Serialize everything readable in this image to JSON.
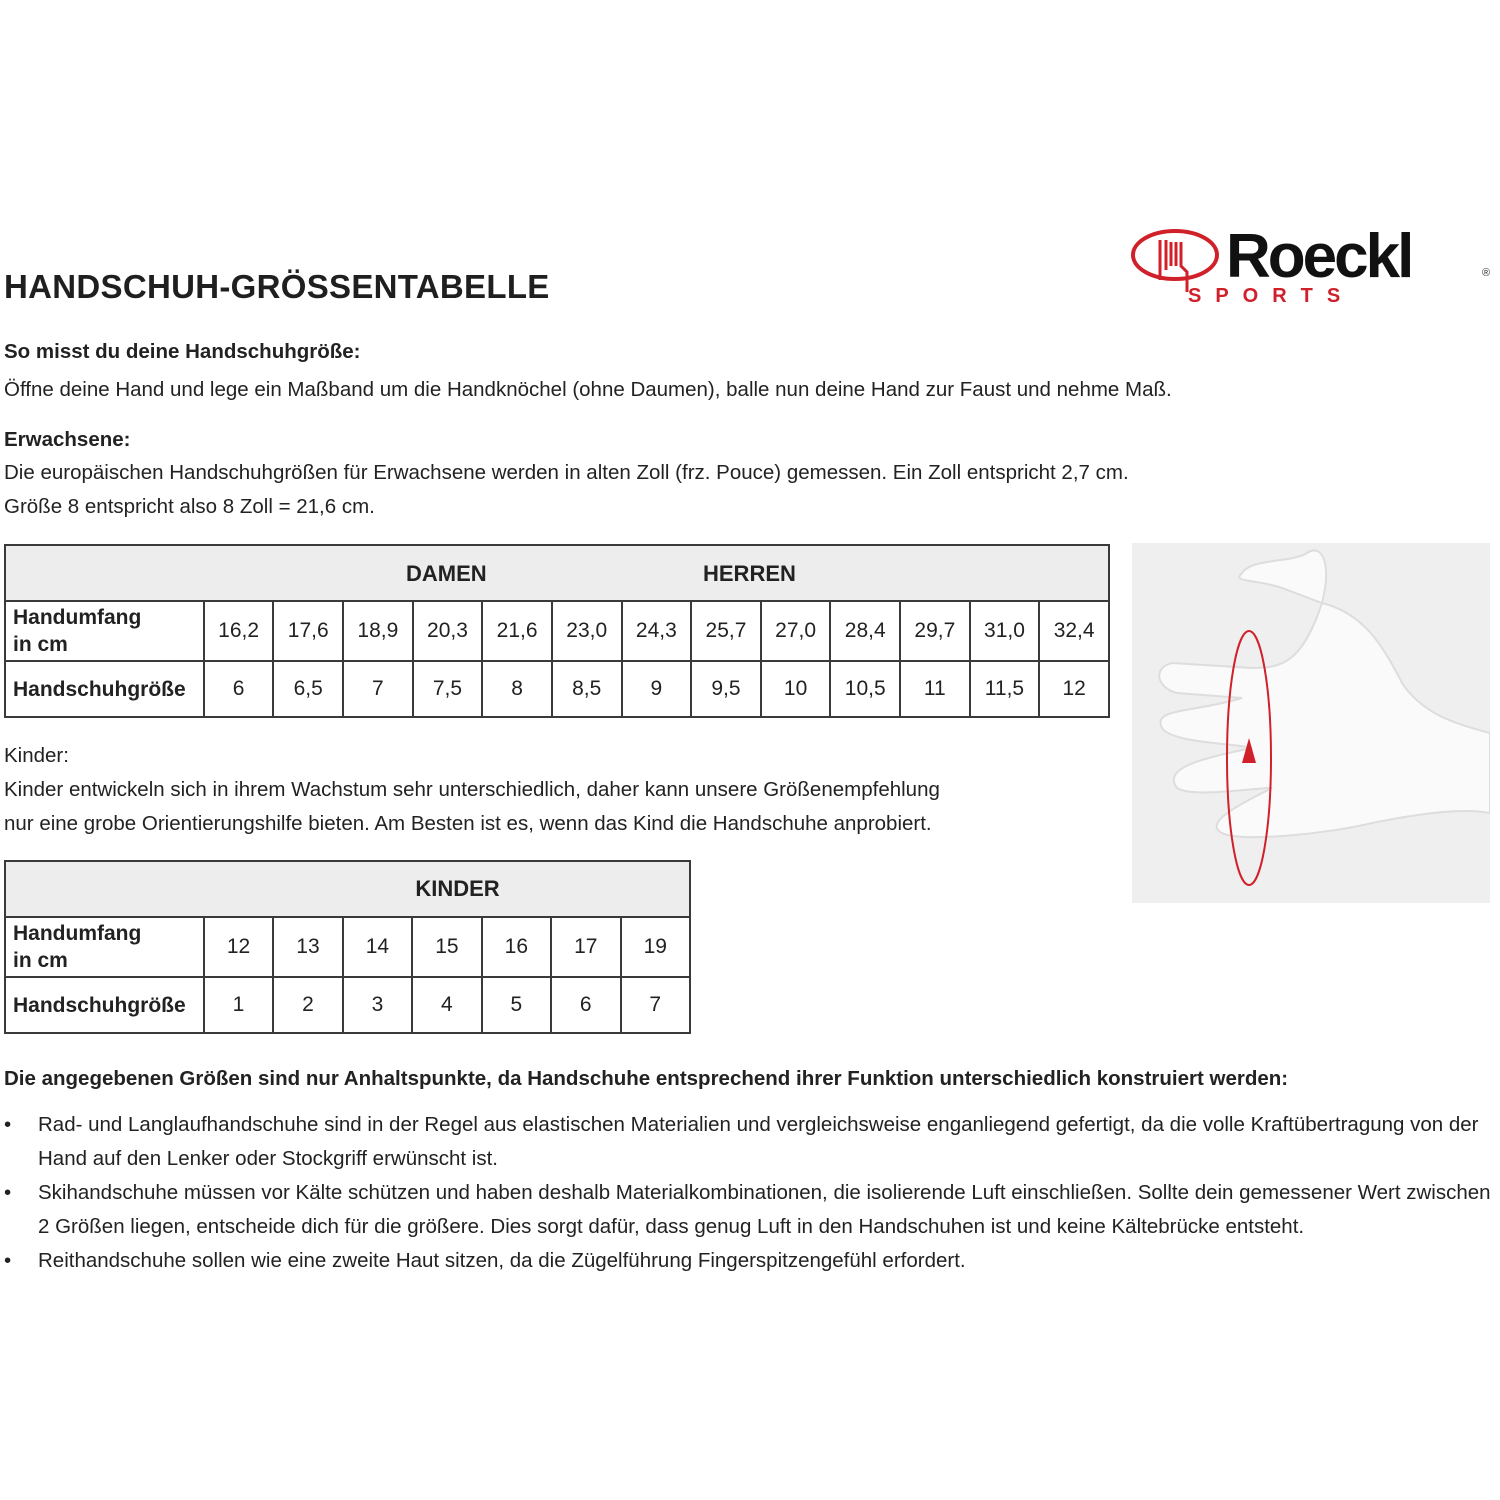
{
  "title": "HANDSCHUH-GRÖSSENTABELLE",
  "logo": {
    "brand": "Roeckl",
    "sub": "SPORTS",
    "registered": "®",
    "color_red": "#d0202a"
  },
  "measure": {
    "heading": "So misst du deine Handschuhgröße:",
    "text": "Öffne deine Hand und lege ein Maßband um die Handknöchel (ohne Daumen), balle nun deine Hand zur Faust und nehme Maß."
  },
  "adults": {
    "heading": "Erwachsene:",
    "line1": "Die europäischen Handschuhgrößen für Erwachsene werden in alten Zoll (frz. Pouce) gemessen. Ein Zoll entspricht 2,7 cm.",
    "line2": "Größe 8 entspricht also 8 Zoll = 21,6 cm."
  },
  "adult_table": {
    "header_damen": "DAMEN",
    "header_herren": "HERREN",
    "row1_label_a": "Handumfang",
    "row1_label_b": "in cm",
    "row2_label": "Handschuhgröße",
    "circumference": [
      "16,2",
      "17,6",
      "18,9",
      "20,3",
      "21,6",
      "23,0",
      "24,3",
      "25,7",
      "27,0",
      "28,4",
      "29,7",
      "31,0",
      "32,4"
    ],
    "sizes": [
      "6",
      "6,5",
      "7",
      "7,5",
      "8",
      "8,5",
      "9",
      "9,5",
      "10",
      "10,5",
      "11",
      "11,5",
      "12"
    ]
  },
  "kids": {
    "heading": "Kinder:",
    "line1": "Kinder entwickeln sich in ihrem Wachstum sehr unterschiedlich, daher kann unsere Größenempfehlung",
    "line2": "nur eine grobe Orientierungshilfe bieten. Am Besten ist es, wenn das Kind die Handschuhe anprobiert."
  },
  "kids_table": {
    "header": "KINDER",
    "row1_label_a": "Handumfang",
    "row1_label_b": "in cm",
    "row2_label": "Handschuhgröße",
    "circumference": [
      "12",
      "13",
      "14",
      "15",
      "16",
      "17",
      "19"
    ],
    "sizes": [
      "1",
      "2",
      "3",
      "4",
      "5",
      "6",
      "7"
    ]
  },
  "notes": {
    "heading": "Die angegebenen Größen sind nur Anhaltspunkte, da Handschuhe entsprechend ihrer Funktion unterschiedlich konstruiert werden:",
    "items": [
      "Rad- und Langlaufhandschuhe sind in der Regel aus elastischen Materialien und vergleichsweise enganliegend gefertigt, da die volle Kraftübertragung von der Hand auf den Lenker oder Stockgriff erwünscht ist.",
      "Skihandschuhe müssen vor Kälte schützen und haben deshalb Materialkombinationen, die isolierende Luft einschließen. Sollte dein gemessener Wert zwischen 2 Größen liegen, entscheide dich für die größere. Dies sorgt dafür, dass genug Luft in den Handschuhen ist und keine Kältebrücke entsteht.",
      "Reithandschuhe sollen wie eine zweite Haut sitzen, da die Zügelführung Fingerspitzengefühl erfordert."
    ]
  }
}
